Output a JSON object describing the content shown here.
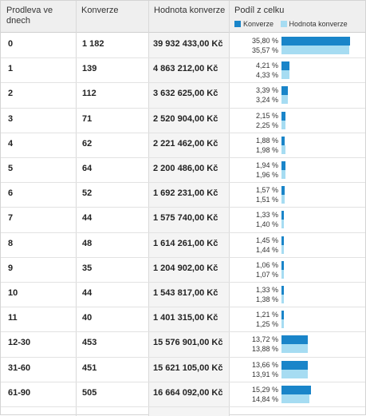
{
  "header": {
    "col_delay": "Prodleva ve dnech",
    "col_conversions": "Konverze",
    "col_value": "Hodnota konverze",
    "col_share": "Podíl z celku",
    "legend": [
      {
        "label": "Konverze",
        "color": "#1a85c9"
      },
      {
        "label": "Hodnota konverze",
        "color": "#a6dcf2"
      }
    ]
  },
  "colors": {
    "conversions_bar": "#1a85c9",
    "value_bar": "#a6dcf2"
  },
  "rows": [
    {
      "delay": "0",
      "conversions": "1 182",
      "value": "39 932 433,00 Kč",
      "conv_share": "35,80 %",
      "value_share": "35,57 %",
      "conv_pct": 35.8,
      "value_pct": 35.57
    },
    {
      "delay": "1",
      "conversions": "139",
      "value": "4 863 212,00 Kč",
      "conv_share": "4,21 %",
      "value_share": "4,33 %",
      "conv_pct": 4.21,
      "value_pct": 4.33
    },
    {
      "delay": "2",
      "conversions": "112",
      "value": "3 632 625,00 Kč",
      "conv_share": "3,39 %",
      "value_share": "3,24 %",
      "conv_pct": 3.39,
      "value_pct": 3.24
    },
    {
      "delay": "3",
      "conversions": "71",
      "value": "2 520 904,00 Kč",
      "conv_share": "2,15 %",
      "value_share": "2,25 %",
      "conv_pct": 2.15,
      "value_pct": 2.25
    },
    {
      "delay": "4",
      "conversions": "62",
      "value": "2 221 462,00 Kč",
      "conv_share": "1,88 %",
      "value_share": "1,98 %",
      "conv_pct": 1.88,
      "value_pct": 1.98
    },
    {
      "delay": "5",
      "conversions": "64",
      "value": "2 200 486,00 Kč",
      "conv_share": "1,94 %",
      "value_share": "1,96 %",
      "conv_pct": 1.94,
      "value_pct": 1.96
    },
    {
      "delay": "6",
      "conversions": "52",
      "value": "1 692 231,00 Kč",
      "conv_share": "1,57 %",
      "value_share": "1,51 %",
      "conv_pct": 1.57,
      "value_pct": 1.51
    },
    {
      "delay": "7",
      "conversions": "44",
      "value": "1 575 740,00 Kč",
      "conv_share": "1,33 %",
      "value_share": "1,40 %",
      "conv_pct": 1.33,
      "value_pct": 1.4
    },
    {
      "delay": "8",
      "conversions": "48",
      "value": "1 614 261,00 Kč",
      "conv_share": "1,45 %",
      "value_share": "1,44 %",
      "conv_pct": 1.45,
      "value_pct": 1.44
    },
    {
      "delay": "9",
      "conversions": "35",
      "value": "1 204 902,00 Kč",
      "conv_share": "1,06 %",
      "value_share": "1,07 %",
      "conv_pct": 1.06,
      "value_pct": 1.07
    },
    {
      "delay": "10",
      "conversions": "44",
      "value": "1 543 817,00 Kč",
      "conv_share": "1,33 %",
      "value_share": "1,38 %",
      "conv_pct": 1.33,
      "value_pct": 1.38
    },
    {
      "delay": "11",
      "conversions": "40",
      "value": "1 401 315,00 Kč",
      "conv_share": "1,21 %",
      "value_share": "1,25 %",
      "conv_pct": 1.21,
      "value_pct": 1.25
    },
    {
      "delay": "12-30",
      "conversions": "453",
      "value": "15 576 901,00 Kč",
      "conv_share": "13,72 %",
      "value_share": "13,88 %",
      "conv_pct": 13.72,
      "value_pct": 13.88
    },
    {
      "delay": "31-60",
      "conversions": "451",
      "value": "15 621 105,00 Kč",
      "conv_share": "13,66 %",
      "value_share": "13,91 %",
      "conv_pct": 13.66,
      "value_pct": 13.91
    },
    {
      "delay": "61-90",
      "conversions": "505",
      "value": "16 664 092,00 Kč",
      "conv_share": "15,29 %",
      "value_share": "14,84 %",
      "conv_pct": 15.29,
      "value_pct": 14.84
    }
  ]
}
